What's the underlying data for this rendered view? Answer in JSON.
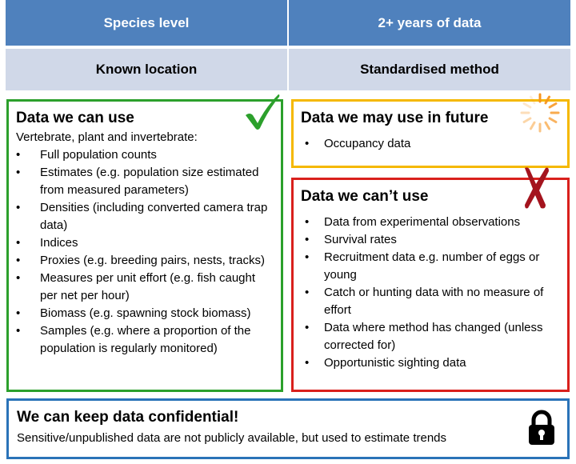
{
  "header": {
    "row1": {
      "left": "Species level",
      "right": "2+ years of data"
    },
    "row2": {
      "left": "Known location",
      "right": "Standardised method"
    }
  },
  "can_use": {
    "title": "Data we can use",
    "intro": "Vertebrate, plant and invertebrate:",
    "items": [
      "Full population counts",
      "Estimates (e.g. population size estimated from measured parameters)",
      "Densities (including  converted camera trap data)",
      "Indices",
      "Proxies (e.g. breeding pairs, nests, tracks)",
      "Measures per unit effort (e.g. fish caught per net per hour)",
      "Biomass (e.g. spawning stock biomass)",
      "Samples (e.g. where a proportion of the population is regularly monitored)"
    ]
  },
  "may_use": {
    "title": "Data we may use in future",
    "items": [
      "Occupancy  data"
    ]
  },
  "cant_use": {
    "title": "Data we can’t use",
    "items": [
      "Data from experimental observations",
      "Survival rates",
      "Recruitment data e.g. number of eggs or young",
      "Catch or hunting data with no measure of effort",
      "Data where method has changed (unless corrected for)",
      "Opportunistic sighting data"
    ]
  },
  "confidential": {
    "title": "We can keep data confidential!",
    "text": "Sensitive/unpublished data are not publicly available, but used to estimate trends"
  },
  "icons": {
    "check": "checkmark-icon",
    "spinner": "loading-spinner-icon",
    "cross": "cross-icon",
    "lock": "padlock-icon"
  },
  "colors": {
    "header_dark": "#4f81bd",
    "header_light": "#d0d8e8",
    "can_use_border": "#2ca02c",
    "may_use_border": "#f5b800",
    "cant_use_border": "#d9201c",
    "confidential_border": "#2a73b8"
  }
}
